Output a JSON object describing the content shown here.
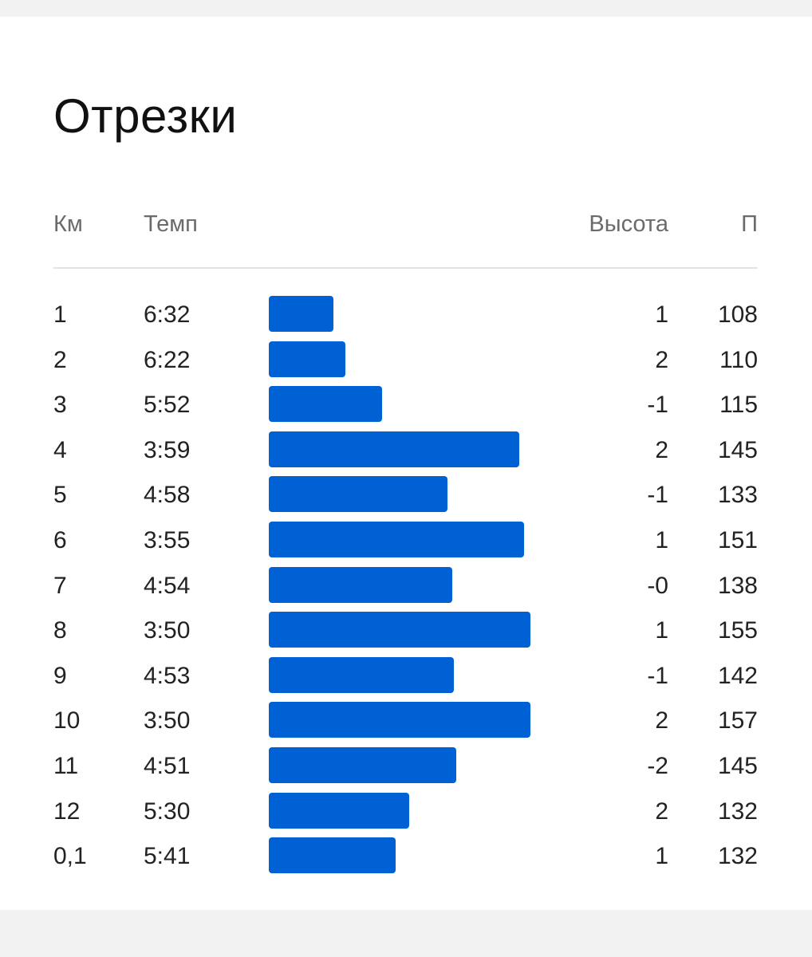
{
  "title": "Отрезки",
  "headers": {
    "km": "Км",
    "pace": "Темп",
    "elevation": "Высота",
    "heart_rate": "П"
  },
  "accent_color": "#0061d5",
  "splits": [
    {
      "km": "1",
      "pace": "6:32",
      "pace_seconds": 392,
      "elevation": "1",
      "heart_rate": "108"
    },
    {
      "km": "2",
      "pace": "6:22",
      "pace_seconds": 382,
      "elevation": "2",
      "heart_rate": "110"
    },
    {
      "km": "3",
      "pace": "5:52",
      "pace_seconds": 352,
      "elevation": "-1",
      "heart_rate": "115"
    },
    {
      "km": "4",
      "pace": "3:59",
      "pace_seconds": 239,
      "elevation": "2",
      "heart_rate": "145"
    },
    {
      "km": "5",
      "pace": "4:58",
      "pace_seconds": 298,
      "elevation": "-1",
      "heart_rate": "133"
    },
    {
      "km": "6",
      "pace": "3:55",
      "pace_seconds": 235,
      "elevation": "1",
      "heart_rate": "151"
    },
    {
      "km": "7",
      "pace": "4:54",
      "pace_seconds": 294,
      "elevation": "-0",
      "heart_rate": "138"
    },
    {
      "km": "8",
      "pace": "3:50",
      "pace_seconds": 230,
      "elevation": "1",
      "heart_rate": "155"
    },
    {
      "km": "9",
      "pace": "4:53",
      "pace_seconds": 293,
      "elevation": "-1",
      "heart_rate": "142"
    },
    {
      "km": "10",
      "pace": "3:50",
      "pace_seconds": 230,
      "elevation": "2",
      "heart_rate": "157"
    },
    {
      "km": "11",
      "pace": "4:51",
      "pace_seconds": 291,
      "elevation": "-2",
      "heart_rate": "145"
    },
    {
      "km": "12",
      "pace": "5:30",
      "pace_seconds": 330,
      "elevation": "2",
      "heart_rate": "132"
    },
    {
      "km": "0,1",
      "pace": "5:41",
      "pace_seconds": 341,
      "elevation": "1",
      "heart_rate": "132"
    }
  ]
}
